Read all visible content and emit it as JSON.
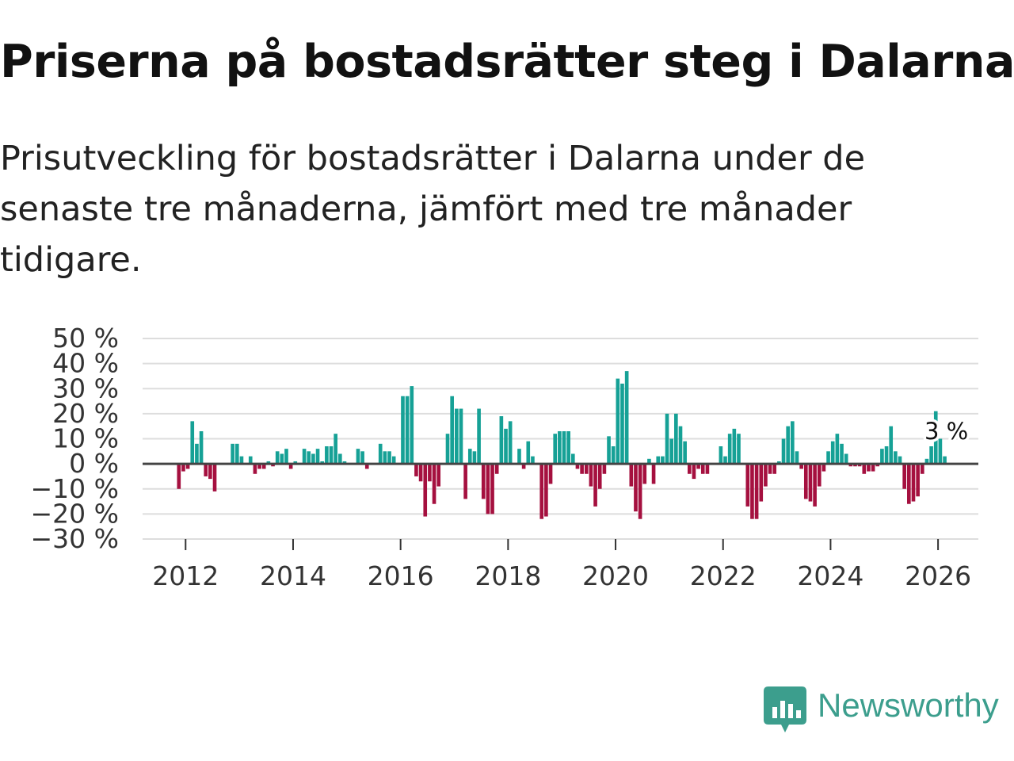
{
  "title": "Priserna på bostadsrätter steg i Dalarna",
  "subtitle": "Prisutveckling för bostadsrätter i Dalarna under de senaste tre månaderna, jämfört med tre månader tidigare.",
  "brand": "Newsworthy",
  "colors": {
    "positive": "#16a196",
    "negative": "#a5103f",
    "grid": "#dddddd",
    "zero_line": "#444444",
    "brand": "#3c9e8d"
  },
  "chart_data": {
    "type": "bar",
    "title": "Priserna på bostadsrätter steg i Dalarna",
    "xlabel": "",
    "ylabel": "",
    "ylim": [
      -30,
      50
    ],
    "yticks": [
      -30,
      -20,
      -10,
      0,
      10,
      20,
      30,
      40,
      50
    ],
    "ytick_labels": [
      "−30 %",
      "−20 %",
      "−10 %",
      "0 %",
      "10 %",
      "20 %",
      "30 %",
      "40 %",
      "50 %"
    ],
    "x_start": 2011.875,
    "x_step": 0.08333,
    "xlim": [
      2011.2,
      2026.75
    ],
    "xticks": [
      2012,
      2014,
      2016,
      2018,
      2020,
      2022,
      2024,
      2026
    ],
    "xtick_labels": [
      "2012",
      "2014",
      "2016",
      "2018",
      "2020",
      "2022",
      "2024",
      "2026"
    ],
    "values": [
      -10,
      -3,
      -2,
      17,
      8,
      13,
      -5,
      -6,
      -11,
      0,
      0,
      0,
      8,
      8,
      3,
      0,
      3,
      -4,
      -2,
      -2,
      1,
      -1,
      5,
      4,
      6,
      -2,
      1,
      0,
      6,
      5,
      4,
      6,
      1,
      7,
      7,
      12,
      4,
      1,
      0,
      0,
      6,
      5,
      -2,
      0,
      0,
      8,
      5,
      5,
      3,
      0,
      27,
      27,
      31,
      -5,
      -7,
      -21,
      -7,
      -16,
      -9,
      0,
      12,
      27,
      22,
      22,
      -14,
      6,
      5,
      22,
      -14,
      -20,
      -20,
      -4,
      19,
      14,
      17,
      0,
      6,
      -2,
      9,
      3,
      0,
      -22,
      -21,
      -8,
      12,
      13,
      13,
      13,
      4,
      -2,
      -4,
      -4,
      -9,
      -17,
      -10,
      -4,
      11,
      7,
      34,
      32,
      37,
      -9,
      -19,
      -22,
      -8,
      2,
      -8,
      3,
      3,
      20,
      10,
      20,
      15,
      9,
      -4,
      -6,
      -2,
      -4,
      -4,
      0,
      0,
      7,
      3,
      12,
      14,
      12,
      0,
      -17,
      -22,
      -22,
      -15,
      -9,
      -4,
      -4,
      1,
      10,
      15,
      17,
      5,
      -2,
      -14,
      -15,
      -17,
      -9,
      -3,
      5,
      9,
      12,
      8,
      4,
      -1,
      -1,
      -1,
      -4,
      -3,
      -3,
      -1,
      6,
      7,
      15,
      5,
      3,
      -10,
      -16,
      -15,
      -13,
      -4,
      2,
      7,
      21,
      10,
      3
    ],
    "last_value_label": "3 %"
  }
}
